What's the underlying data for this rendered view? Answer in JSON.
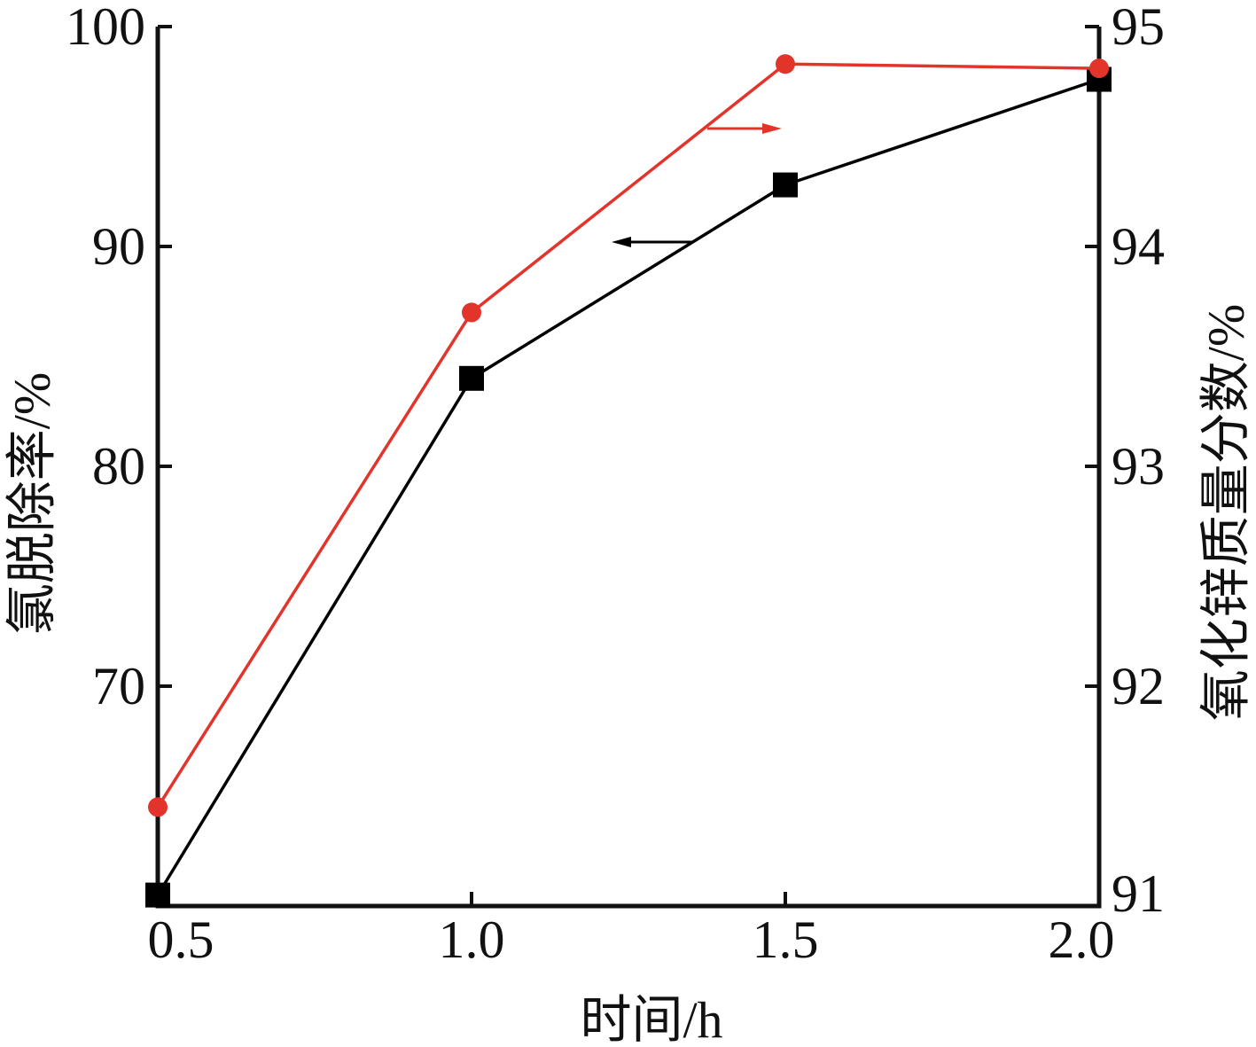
{
  "chart_data": {
    "type": "line",
    "x": [
      0.5,
      1.0,
      1.5,
      2.0
    ],
    "xlabel": "时间/h",
    "ylabel": "氯脱除率/%",
    "ylabel_right": "氧化锌质量分数/%",
    "xlim": [
      0.5,
      2.0
    ],
    "ylim": [
      60,
      100
    ],
    "ylim_right": [
      91,
      95
    ],
    "x_ticks": [
      "0.5",
      "1.0",
      "1.5",
      "2.0"
    ],
    "y_ticks": [
      "70",
      "80",
      "90",
      "100"
    ],
    "y_ticks_right": [
      "91",
      "92",
      "93",
      "94",
      "95"
    ],
    "grid": false,
    "legend": "none",
    "series": [
      {
        "axis": "left",
        "color": "#000000",
        "marker": "square",
        "values": [
          60.5,
          84.0,
          92.8,
          97.6
        ]
      },
      {
        "axis": "right",
        "color": "#e3342c",
        "marker": "circle",
        "values": [
          91.45,
          93.7,
          94.83,
          94.81
        ]
      }
    ],
    "annotations": [
      {
        "type": "arrow",
        "direction": "right",
        "color": "#e3342c",
        "refers_to_axis": "right"
      },
      {
        "type": "arrow",
        "direction": "left",
        "color": "#000000",
        "refers_to_axis": "left"
      }
    ]
  }
}
